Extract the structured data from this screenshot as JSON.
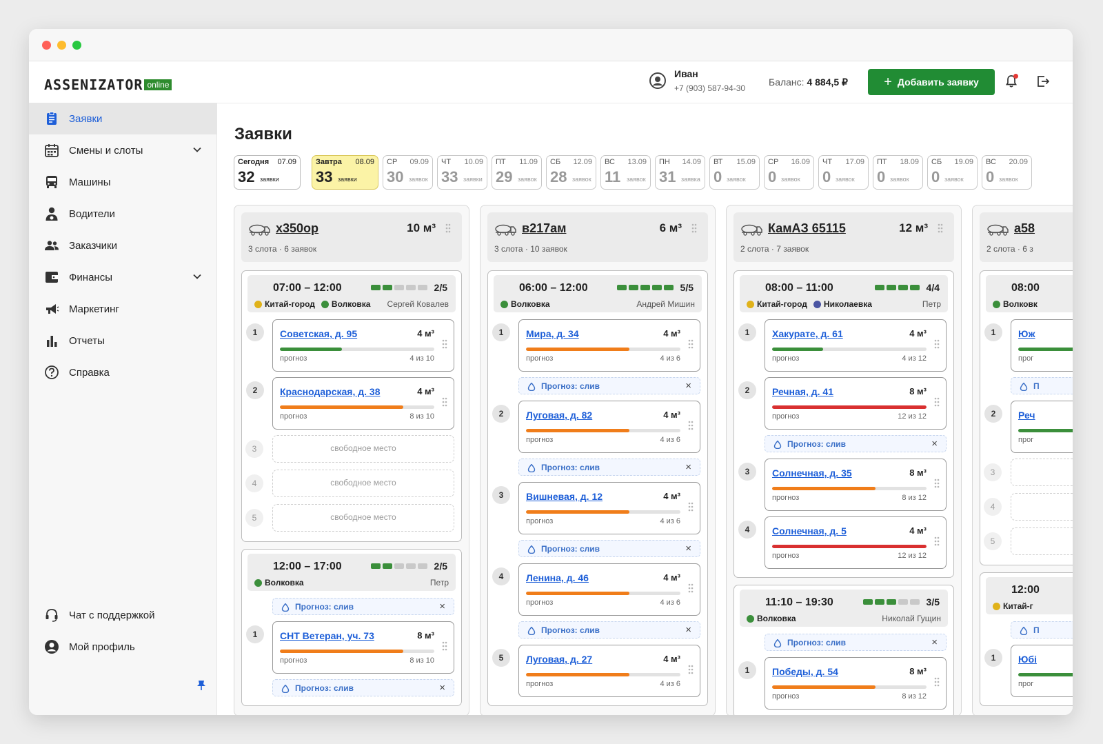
{
  "app": {
    "logo_main": "ASSENIZATOR",
    "logo_badge": "online"
  },
  "header": {
    "user_name": "Иван",
    "user_phone": "+7 (903) 587-94-30",
    "balance_label": "Баланс:",
    "balance_value": "4 884,5 ₽",
    "add_button": "Добавить заявку"
  },
  "sidebar": {
    "items": [
      {
        "label": "Заявки"
      },
      {
        "label": "Смены и слоты"
      },
      {
        "label": "Машины"
      },
      {
        "label": "Водители"
      },
      {
        "label": "Заказчики"
      },
      {
        "label": "Финансы"
      },
      {
        "label": "Маркетинг"
      },
      {
        "label": "Отчеты"
      },
      {
        "label": "Справка"
      }
    ],
    "bottom": [
      {
        "label": "Чат с поддержкой"
      },
      {
        "label": "Мой профиль"
      }
    ]
  },
  "page": {
    "title": "Заявки"
  },
  "days": [
    {
      "name": "Сегодня",
      "date": "07.09",
      "count": "32",
      "label": "заявки"
    },
    {
      "name": "Завтра",
      "date": "08.09",
      "count": "33",
      "label": "заявки"
    },
    {
      "name": "СР",
      "date": "09.09",
      "count": "30",
      "label": "заявок"
    },
    {
      "name": "ЧТ",
      "date": "10.09",
      "count": "33",
      "label": "заявки"
    },
    {
      "name": "ПТ",
      "date": "11.09",
      "count": "29",
      "label": "заявок"
    },
    {
      "name": "СБ",
      "date": "12.09",
      "count": "28",
      "label": "заявок"
    },
    {
      "name": "ВС",
      "date": "13.09",
      "count": "11",
      "label": "заявок"
    },
    {
      "name": "ПН",
      "date": "14.09",
      "count": "31",
      "label": "заявка"
    },
    {
      "name": "ВТ",
      "date": "15.09",
      "count": "0",
      "label": "заявок"
    },
    {
      "name": "СР",
      "date": "16.09",
      "count": "0",
      "label": "заявок"
    },
    {
      "name": "ЧТ",
      "date": "17.09",
      "count": "0",
      "label": "заявок"
    },
    {
      "name": "ПТ",
      "date": "18.09",
      "count": "0",
      "label": "заявок"
    },
    {
      "name": "СБ",
      "date": "19.09",
      "count": "0",
      "label": "заявок"
    },
    {
      "name": "ВС",
      "date": "20.09",
      "count": "0",
      "label": "заявок"
    }
  ],
  "colors": {
    "green": "#3b8f3b",
    "orange": "#f07d1a",
    "red": "#d93030",
    "yellow": "#e0b21a",
    "purple": "#4a55a2",
    "link": "#1e5fd8",
    "accent": "#218c34"
  },
  "common": {
    "forecast_label": "прогноз",
    "free_slot": "свободное место",
    "forecast_drain": "Прогноз: слив"
  },
  "trucks": [
    {
      "plate": "х350ор",
      "volume": "10 м³",
      "summary": "3 слота · 6 заявок",
      "shifts": [
        {
          "time": "07:00 – 12:00",
          "filled": 2,
          "total": 5,
          "ratio": "2/5",
          "driver": "Сергей Ковалев",
          "areas": [
            {
              "name": "Китай-город",
              "color": "#e0b21a"
            },
            {
              "name": "Волковка",
              "color": "#3b8f3b"
            }
          ],
          "items": [
            {
              "kind": "order",
              "num": "1",
              "address": "Советская, д. 95",
              "volume": "4 м³",
              "progress": 0.4,
              "color": "#3b8f3b",
              "fraction": "4 из 10"
            },
            {
              "kind": "order",
              "num": "2",
              "address": "Краснодарская, д. 38",
              "volume": "4 м³",
              "progress": 0.8,
              "color": "#f07d1a",
              "fraction": "8 из 10"
            },
            {
              "kind": "free",
              "num": "3"
            },
            {
              "kind": "free",
              "num": "4"
            },
            {
              "kind": "free",
              "num": "5"
            }
          ]
        },
        {
          "time": "12:00 – 17:00",
          "filled": 2,
          "total": 5,
          "ratio": "2/5",
          "driver": "Петр",
          "areas": [
            {
              "name": "Волковка",
              "color": "#3b8f3b"
            }
          ],
          "items": [
            {
              "kind": "forecast"
            },
            {
              "kind": "order",
              "num": "1",
              "address": "СНТ Ветеран, уч. 73",
              "volume": "8 м³",
              "progress": 0.8,
              "color": "#f07d1a",
              "fraction": "8 из 10"
            },
            {
              "kind": "forecast"
            }
          ]
        }
      ]
    },
    {
      "plate": "в217ам",
      "volume": "6 м³",
      "summary": "3 слота · 10 заявок",
      "shifts": [
        {
          "time": "06:00 – 12:00",
          "filled": 5,
          "total": 5,
          "ratio": "5/5",
          "driver": "Андрей Мишин",
          "areas": [
            {
              "name": "Волковка",
              "color": "#3b8f3b"
            }
          ],
          "items": [
            {
              "kind": "order",
              "num": "1",
              "address": "Мира, д. 34",
              "volume": "4 м³",
              "progress": 0.67,
              "color": "#f07d1a",
              "fraction": "4 из 6"
            },
            {
              "kind": "forecast"
            },
            {
              "kind": "order",
              "num": "2",
              "address": "Луговая, д. 82",
              "volume": "4 м³",
              "progress": 0.67,
              "color": "#f07d1a",
              "fraction": "4 из 6"
            },
            {
              "kind": "forecast"
            },
            {
              "kind": "order",
              "num": "3",
              "address": "Вишневая, д. 12",
              "volume": "4 м³",
              "progress": 0.67,
              "color": "#f07d1a",
              "fraction": "4 из 6"
            },
            {
              "kind": "forecast"
            },
            {
              "kind": "order",
              "num": "4",
              "address": "Ленина, д. 46",
              "volume": "4 м³",
              "progress": 0.67,
              "color": "#f07d1a",
              "fraction": "4 из 6"
            },
            {
              "kind": "forecast"
            },
            {
              "kind": "order",
              "num": "5",
              "address": "Луговая, д. 27",
              "volume": "4 м³",
              "progress": 0.67,
              "color": "#f07d1a",
              "fraction": "4 из 6"
            }
          ]
        }
      ]
    },
    {
      "plate": "КамАЗ 65115",
      "volume": "12 м³",
      "summary": "2 слота · 7 заявок",
      "shifts": [
        {
          "time": "08:00 – 11:00",
          "filled": 4,
          "total": 4,
          "ratio": "4/4",
          "driver": "Петр",
          "areas": [
            {
              "name": "Китай-город",
              "color": "#e0b21a"
            },
            {
              "name": "Николаевка",
              "color": "#4a55a2"
            }
          ],
          "items": [
            {
              "kind": "order",
              "num": "1",
              "address": "Хакурате, д. 61",
              "volume": "4 м³",
              "progress": 0.33,
              "color": "#3b8f3b",
              "fraction": "4 из 12"
            },
            {
              "kind": "order",
              "num": "2",
              "address": "Речная, д. 41",
              "volume": "8 м³",
              "progress": 1.0,
              "color": "#d93030",
              "fraction": "12 из 12"
            },
            {
              "kind": "forecast"
            },
            {
              "kind": "order",
              "num": "3",
              "address": "Солнечная, д. 35",
              "volume": "8 м³",
              "progress": 0.67,
              "color": "#f07d1a",
              "fraction": "8 из 12"
            },
            {
              "kind": "order",
              "num": "4",
              "address": "Солнечная, д. 5",
              "volume": "4 м³",
              "progress": 1.0,
              "color": "#d93030",
              "fraction": "12 из 12"
            }
          ]
        },
        {
          "time": "11:10 – 19:30",
          "filled": 3,
          "total": 5,
          "ratio": "3/5",
          "driver": "Николай Гущин",
          "areas": [
            {
              "name": "Волковка",
              "color": "#3b8f3b"
            }
          ],
          "items": [
            {
              "kind": "forecast"
            },
            {
              "kind": "order",
              "num": "1",
              "address": "Победы, д. 54",
              "volume": "8 м³",
              "progress": 0.67,
              "color": "#f07d1a",
              "fraction": "8 из 12"
            }
          ]
        }
      ]
    },
    {
      "plate": "а58",
      "summary": "2 слота · 6 з",
      "shifts": [
        {
          "time": "08:00",
          "filled": 0,
          "total": 0,
          "ratio": "",
          "areas": [
            {
              "name": "Волковк",
              "color": "#3b8f3b"
            }
          ],
          "items": [
            {
              "kind": "order",
              "num": "1",
              "address": "Юж",
              "volume": "",
              "progress": 0.5,
              "color": "#3b8f3b",
              "fraction": "",
              "pl": "прог"
            },
            {
              "kind": "forecast",
              "text": "П"
            },
            {
              "kind": "order",
              "num": "2",
              "address": "Реч",
              "volume": "",
              "progress": 0.5,
              "color": "#3b8f3b",
              "fraction": "",
              "pl": "прог"
            },
            {
              "kind": "free",
              "num": "3",
              "text": ""
            },
            {
              "kind": "free",
              "num": "4",
              "text": ""
            },
            {
              "kind": "free",
              "num": "5",
              "text": ""
            }
          ]
        },
        {
          "time": "12:00",
          "filled": 0,
          "total": 0,
          "ratio": "",
          "areas": [
            {
              "name": "Китай-г",
              "color": "#e0b21a"
            }
          ],
          "items": [
            {
              "kind": "forecast",
              "text": "П"
            },
            {
              "kind": "order",
              "num": "1",
              "address": "Юбі",
              "volume": "",
              "progress": 0.5,
              "color": "#3b8f3b",
              "fraction": "",
              "pl": "прог"
            }
          ]
        }
      ]
    }
  ]
}
